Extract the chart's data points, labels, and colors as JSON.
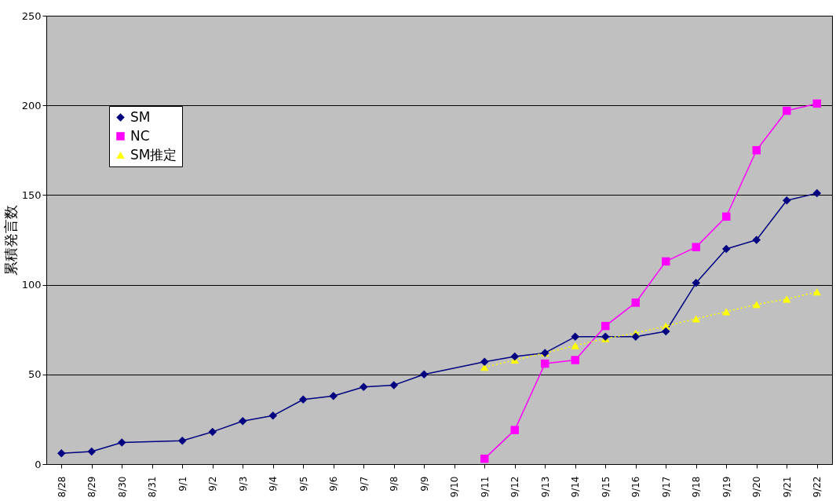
{
  "chart_data": {
    "type": "line",
    "ylabel": "累積発言数",
    "categories": [
      "8/28",
      "8/29",
      "8/30",
      "8/31",
      "9/1",
      "9/2",
      "9/3",
      "9/4",
      "9/5",
      "9/6",
      "9/7",
      "9/8",
      "9/9",
      "9/10",
      "9/11",
      "9/12",
      "9/13",
      "9/14",
      "9/15",
      "9/16",
      "9/17",
      "9/18",
      "9/19",
      "9/20",
      "9/21",
      "9/22"
    ],
    "series": [
      {
        "name": "SM",
        "color": "#000080",
        "marker": "diamond",
        "line_style": "solid",
        "values": [
          6,
          7,
          12,
          null,
          13,
          18,
          24,
          27,
          36,
          38,
          43,
          44,
          50,
          null,
          57,
          60,
          62,
          71,
          71,
          71,
          74,
          101,
          120,
          125,
          147,
          151
        ]
      },
      {
        "name": "NC",
        "color": "#ff00ff",
        "marker": "square",
        "line_style": "solid",
        "values": [
          null,
          null,
          null,
          null,
          null,
          null,
          null,
          null,
          null,
          null,
          null,
          null,
          null,
          null,
          3,
          19,
          56,
          58,
          77,
          90,
          113,
          121,
          138,
          175,
          197,
          201
        ]
      },
      {
        "name": "SM推定",
        "color": "#ffff00",
        "marker": "triangle",
        "line_style": "dotted",
        "values": [
          null,
          null,
          null,
          null,
          null,
          null,
          null,
          null,
          null,
          null,
          null,
          null,
          null,
          null,
          54,
          58,
          62,
          66,
          70,
          73,
          77,
          81,
          85,
          89,
          92,
          96
        ]
      }
    ],
    "ylim": [
      0,
      250
    ],
    "yticks": [
      0,
      50,
      100,
      150,
      200,
      250
    ],
    "grid": "y",
    "legend": "top left"
  }
}
